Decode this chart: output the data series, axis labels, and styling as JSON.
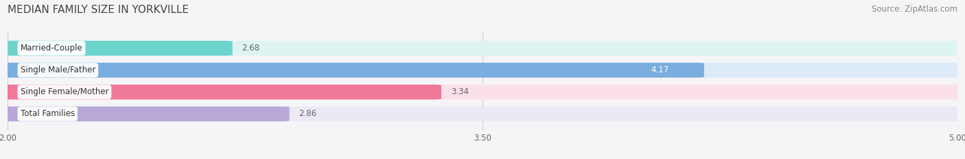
{
  "title": "MEDIAN FAMILY SIZE IN YORKVILLE",
  "source": "Source: ZipAtlas.com",
  "categories": [
    "Married-Couple",
    "Single Male/Father",
    "Single Female/Mother",
    "Total Families"
  ],
  "values": [
    2.68,
    4.17,
    3.34,
    2.86
  ],
  "bar_colors": [
    "#6dd4cc",
    "#7aaedf",
    "#f07898",
    "#b8a8d8"
  ],
  "bar_bg_colors": [
    "#ddf4f2",
    "#ddeaf8",
    "#fce0e8",
    "#ece8f4"
  ],
  "xlim": [
    2.0,
    5.0
  ],
  "xmin": 2.0,
  "xmax": 5.0,
  "xticks": [
    2.0,
    3.5,
    5.0
  ],
  "xtick_labels": [
    "2.00",
    "3.50",
    "5.00"
  ],
  "bar_height": 0.62,
  "background_color": "#f5f5f8",
  "title_color": "#444444",
  "source_color": "#888888",
  "label_color": "#333333",
  "value_color_inside": "#ffffff",
  "value_color_outside": "#666666",
  "grid_color": "#cccccc",
  "title_fontsize": 11,
  "source_fontsize": 8.5,
  "label_fontsize": 8.5,
  "value_fontsize": 8.5,
  "tick_fontsize": 8.5
}
